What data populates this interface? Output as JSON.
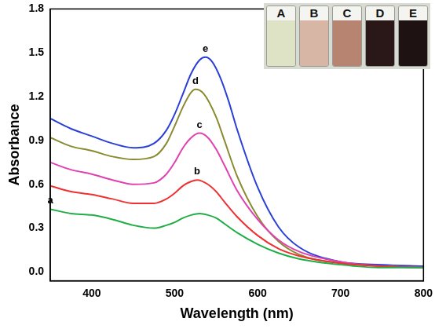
{
  "chart_data": {
    "type": "line",
    "x_label": "Wavelength (nm)",
    "y_label": "Absorbance",
    "annotations": [
      "A",
      "B",
      "C",
      "D",
      "E"
    ],
    "xlim": [
      350,
      800
    ],
    "xticks": [
      400,
      500,
      600,
      700,
      800
    ],
    "ylim": [
      -0.06,
      1.8
    ],
    "yticks": [
      {
        "value": 0,
        "label": "0.0"
      },
      0.3,
      0.6,
      0.9,
      1.2,
      1.5,
      1.8
    ],
    "grid": false,
    "series": [
      {
        "name": "a",
        "color": "#1fae45",
        "x": [
          350,
          375,
          400,
          425,
          450,
          475,
          490,
          500,
          510,
          520,
          530,
          540,
          550,
          560,
          575,
          600,
          625,
          650,
          700,
          750,
          800
        ],
        "values": [
          0.43,
          0.4,
          0.39,
          0.36,
          0.32,
          0.3,
          0.32,
          0.34,
          0.37,
          0.39,
          0.4,
          0.39,
          0.37,
          0.33,
          0.27,
          0.19,
          0.13,
          0.09,
          0.05,
          0.03,
          0.03
        ]
      },
      {
        "name": "b",
        "color": "#f03030",
        "x": [
          350,
          375,
          400,
          425,
          450,
          475,
          490,
          500,
          510,
          520,
          527,
          540,
          550,
          560,
          575,
          600,
          625,
          650,
          700,
          750,
          800
        ],
        "values": [
          0.59,
          0.55,
          0.53,
          0.5,
          0.47,
          0.47,
          0.5,
          0.54,
          0.59,
          0.62,
          0.63,
          0.6,
          0.55,
          0.48,
          0.38,
          0.25,
          0.16,
          0.11,
          0.06,
          0.04,
          0.03
        ]
      },
      {
        "name": "c",
        "color": "#e040b0",
        "x": [
          350,
          375,
          400,
          425,
          450,
          475,
          490,
          500,
          510,
          520,
          530,
          540,
          550,
          560,
          575,
          600,
          625,
          650,
          700,
          750,
          800
        ],
        "values": [
          0.75,
          0.7,
          0.67,
          0.63,
          0.6,
          0.61,
          0.67,
          0.75,
          0.85,
          0.92,
          0.95,
          0.92,
          0.84,
          0.73,
          0.56,
          0.36,
          0.22,
          0.14,
          0.07,
          0.04,
          0.03
        ]
      },
      {
        "name": "d",
        "color": "#8a8a30",
        "x": [
          350,
          375,
          400,
          425,
          450,
          475,
          490,
          500,
          510,
          520,
          525,
          535,
          550,
          560,
          575,
          600,
          625,
          650,
          700,
          750,
          800
        ],
        "values": [
          0.92,
          0.86,
          0.83,
          0.79,
          0.77,
          0.79,
          0.88,
          1.0,
          1.13,
          1.23,
          1.25,
          1.22,
          1.06,
          0.9,
          0.66,
          0.38,
          0.21,
          0.12,
          0.06,
          0.04,
          0.03
        ]
      },
      {
        "name": "e",
        "color": "#2a3fd8",
        "x": [
          350,
          375,
          400,
          425,
          450,
          475,
          490,
          500,
          510,
          520,
          530,
          537,
          545,
          555,
          565,
          575,
          600,
          625,
          650,
          700,
          750,
          800
        ],
        "values": [
          1.05,
          0.98,
          0.93,
          0.88,
          0.85,
          0.88,
          0.97,
          1.08,
          1.22,
          1.36,
          1.45,
          1.47,
          1.44,
          1.33,
          1.17,
          0.98,
          0.58,
          0.31,
          0.17,
          0.07,
          0.05,
          0.04
        ]
      }
    ]
  }
}
